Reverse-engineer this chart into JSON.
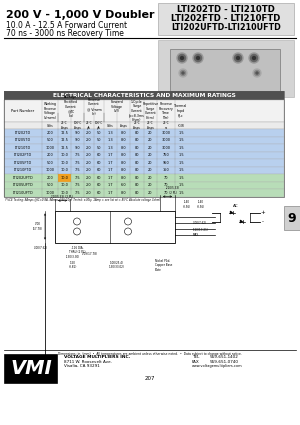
{
  "title_left_line1": "200 V - 1,000 V Doubler",
  "title_left_line2": "10.0 A - 12.5 A Forward Current",
  "title_left_line3": "70 ns - 3000 ns Recovery Time",
  "title_right_line1": "LTI202TD - LTI210TD",
  "title_right_line2": "LTI202FTD - LTI210FTD",
  "title_right_line3": "LTI202UFTD-LTI210UFTD",
  "table_header": "ELECTRICAL CHARACTERISTICS AND MAXIMUM RATINGS",
  "table_data": [
    [
      "LTI202TD",
      "200",
      "12.5",
      "9.0",
      "2.0",
      "50",
      "1.3",
      "8.0",
      "80",
      "20",
      "3000",
      "1.5"
    ],
    [
      "LTI205TD",
      "500",
      "12.5",
      "9.0",
      "2.0",
      "50",
      "1.3",
      "8.0",
      "80",
      "20",
      "3000",
      "1.5"
    ],
    [
      "LTI210TD",
      "1000",
      "12.5",
      "9.0",
      "2.0",
      "50",
      "1.3",
      "8.0",
      "80",
      "20",
      "3000",
      "1.5"
    ],
    [
      "LTI202FTD",
      "200",
      "10.0",
      "7.5",
      "2.0",
      "60",
      "1.7",
      "8.0",
      "80",
      "20",
      "750",
      "1.5"
    ],
    [
      "LTI205FTD",
      "500",
      "10.0",
      "7.5",
      "2.0",
      "60",
      "1.7",
      "8.0",
      "80",
      "20",
      "950",
      "1.5"
    ],
    [
      "LTI210FTD",
      "1000",
      "10.0",
      "7.5",
      "2.0",
      "60",
      "1.7",
      "8.0",
      "80",
      "20",
      "150",
      "1.5"
    ],
    [
      "LTI202UFTD",
      "200",
      "10.0",
      "7.5",
      "2.0",
      "60",
      "1.7",
      "8.0",
      "80",
      "20",
      "70",
      "1.5"
    ],
    [
      "LTI205UFTD",
      "500",
      "10.0",
      "7.5",
      "2.0",
      "60",
      "1.7",
      "6.0",
      "80",
      "20",
      "70",
      "1.5"
    ],
    [
      "LTI210UFTD",
      "1000",
      "10.0",
      "7.5",
      "2.0",
      "60",
      "1.7",
      "8.0",
      "80",
      "20",
      "70",
      "1.5"
    ]
  ],
  "row_bg_td": "#b8d0ee",
  "row_bg_ftd": "#b8d0ee",
  "row_bg_uftd": "#b8ddb8",
  "orange_cell": [
    6,
    2
  ],
  "orange_color": "#f0a020",
  "page_number": "207",
  "section_number": "9",
  "bg_color": "#ffffff",
  "table_header_bg": "#505050",
  "table_header_fg": "#ffffff",
  "footer_text": "Dimensions: in. (mm)  •  All temperatures are ambient unless otherwise noted.  •  Data subject to change without notice.",
  "company_name": "VOLTAGE MULTIPLIERS INC.",
  "company_addr1": "8711 W. Roosevelt Ave.",
  "company_addr2": "Visalia, CA 93291",
  "tel_label": "TEL",
  "tel_val": "559-651-1402",
  "fax_label": "FAX",
  "fax_val": "559-651-0740",
  "web": "www.voltagemultipliers.com",
  "note_text": "(*VCE Testing: 8Amps @IC=0.8A, 8Amps @All 10pF Tested: ±30ty, 1Amp = see list at = 85°C Absolute voltage 3ohm)"
}
